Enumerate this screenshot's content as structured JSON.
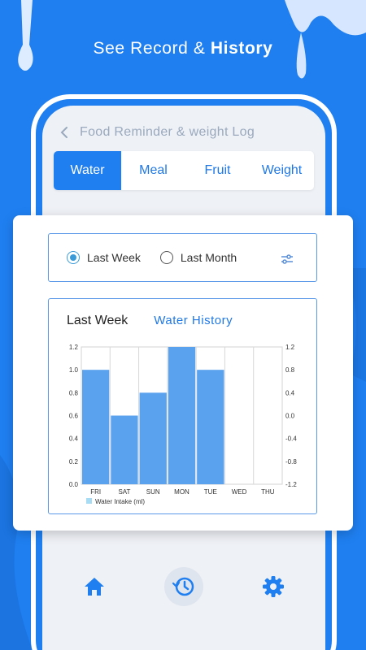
{
  "headline": {
    "regular": "See Record & ",
    "bold": "History"
  },
  "header": {
    "title": "Food Reminder & weight Log"
  },
  "tabs": [
    {
      "label": "Water",
      "active": true
    },
    {
      "label": "Meal",
      "active": false
    },
    {
      "label": "Fruit",
      "active": false
    },
    {
      "label": "Weight",
      "active": false
    }
  ],
  "filter": {
    "options": [
      {
        "label": "Last Week",
        "checked": true
      },
      {
        "label": "Last Month",
        "checked": false
      }
    ],
    "icon": "sliders-icon"
  },
  "chart_card": {
    "period_label": "Last Week",
    "title": "Water History"
  },
  "chart_data": {
    "type": "bar",
    "categories": [
      "FRI",
      "SAT",
      "SUN",
      "MON",
      "TUE",
      "WED",
      "THU"
    ],
    "series": [
      {
        "name": "Water Intake (ml)",
        "values": [
          1.0,
          0.6,
          0.8,
          1.2,
          1.0,
          0,
          0
        ],
        "color": "#5aa2ee"
      }
    ],
    "y_left_ticks": [
      "0.0",
      "0.2",
      "0.4",
      "0.6",
      "0.8",
      "1.0",
      "1.2"
    ],
    "y_right_ticks": [
      "-1.2",
      "-0.8",
      "-0.4",
      "0.0",
      "0.4",
      "0.8",
      "1.2"
    ],
    "ylim": [
      0,
      1.2
    ],
    "grid": true,
    "legend": "bottom-left"
  },
  "nav": {
    "items": [
      "home-icon",
      "history-icon",
      "settings-icon"
    ]
  },
  "colors": {
    "brand": "#1f7ff0",
    "bar": "#5aa2ee",
    "accent_text": "#1f78e6"
  }
}
